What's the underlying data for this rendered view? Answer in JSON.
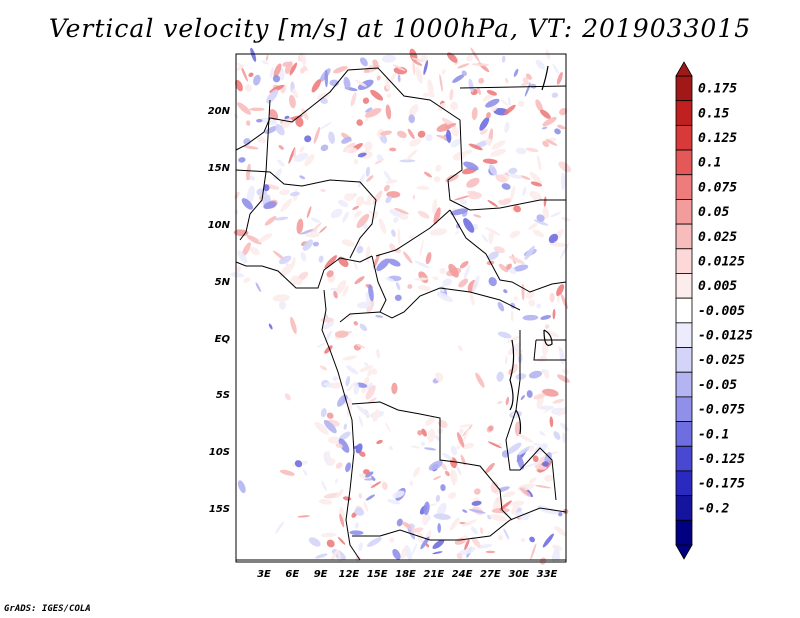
{
  "title": "Vertical velocity [m/s] at 1000hPa, VT: 2019033015",
  "credit": "GrADS: IGES/COLA",
  "map": {
    "lat_ticks": [
      "20N",
      "15N",
      "10N",
      "5N",
      "EQ",
      "5S",
      "10S",
      "15S"
    ],
    "lon_ticks": [
      "3E",
      "6E",
      "9E",
      "12E",
      "15E",
      "18E",
      "21E",
      "24E",
      "27E",
      "30E",
      "33E"
    ]
  },
  "colorbar": {
    "labels": [
      "0.175",
      "0.15",
      "0.125",
      "0.1",
      "0.075",
      "0.05",
      "0.025",
      "0.0125",
      "0.005",
      "-0.005",
      "-0.0125",
      "-0.025",
      "-0.05",
      "-0.075",
      "-0.1",
      "-0.125",
      "-0.175",
      "-0.2"
    ],
    "colors": [
      "#a01818",
      "#c02020",
      "#d83a3a",
      "#e45858",
      "#ee7c7c",
      "#f39c9c",
      "#f8bcbc",
      "#fcd8d8",
      "#fdecec",
      "#ffffff",
      "#ececfc",
      "#d4d4f8",
      "#b4b4f2",
      "#9090ea",
      "#6e6ee0",
      "#4848d0",
      "#2a2ac0",
      "#14149e",
      "#000080"
    ]
  }
}
